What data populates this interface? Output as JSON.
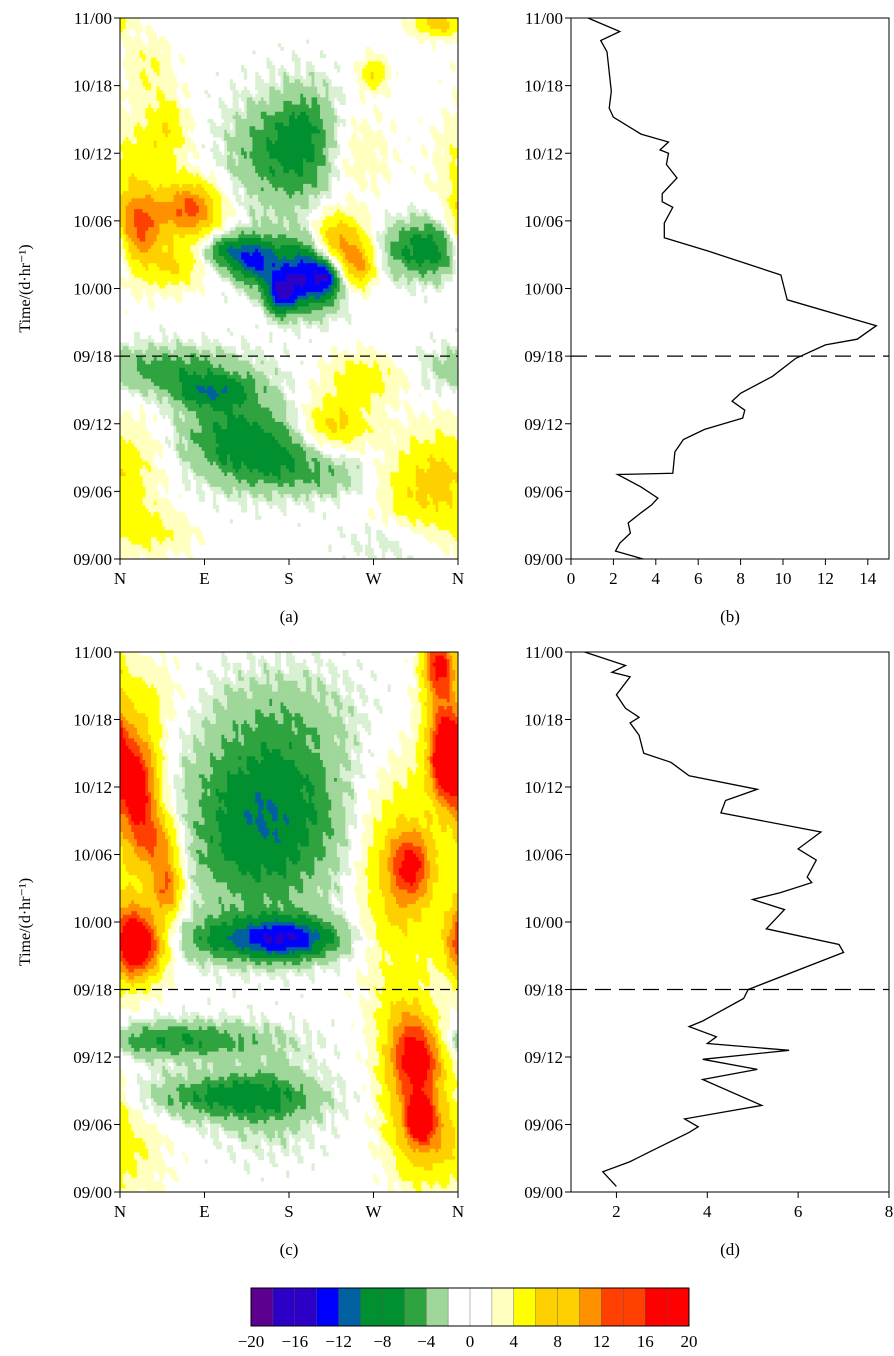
{
  "chart_data": [
    {
      "id": "a",
      "panel_label": "(a)",
      "type": "heatmap",
      "title": "",
      "xlabel": "",
      "ylabel": "Time/(d·hr⁻¹)",
      "x_ticks": [
        "N",
        "E",
        "S",
        "W",
        "N"
      ],
      "y_ticks": [
        "09/00",
        "09/06",
        "09/12",
        "09/18",
        "10/00",
        "10/06",
        "10/12",
        "10/18",
        "11/00"
      ],
      "ylim_hours": [
        0,
        48
      ],
      "reference_line": "09/18",
      "grid": false,
      "blobs": [
        {
          "az": 20,
          "t": 29,
          "sa": 18,
          "st": 2.5,
          "v": 14
        },
        {
          "az": 75,
          "t": 31,
          "sa": 22,
          "st": 1.8,
          "v": 13
        },
        {
          "az": 60,
          "t": 26,
          "sa": 18,
          "st": 1.4,
          "v": 6
        },
        {
          "az": 230,
          "t": 28,
          "sa": 20,
          "st": 1.8,
          "v": 12
        },
        {
          "az": 255,
          "t": 26,
          "sa": 12,
          "st": 1.4,
          "v": 9
        },
        {
          "az": 170,
          "t": 23,
          "sa": 10,
          "st": 1.2,
          "v": -6
        },
        {
          "az": 175,
          "t": 24,
          "sa": 15,
          "st": 1.2,
          "v": -7
        },
        {
          "az": 145,
          "t": 26.5,
          "sa": 20,
          "st": 1.5,
          "v": -11
        },
        {
          "az": 205,
          "t": 25.5,
          "sa": 22,
          "st": 2.2,
          "v": -14
        },
        {
          "az": 220,
          "t": 25,
          "sa": 8,
          "st": 1.0,
          "v": -6
        },
        {
          "az": 110,
          "t": 27.5,
          "sa": 18,
          "st": 1.0,
          "v": -6
        },
        {
          "az": 330,
          "t": 27.5,
          "sa": 35,
          "st": 1.8,
          "v": -8
        },
        {
          "az": 175,
          "t": 36,
          "sa": 40,
          "st": 3.5,
          "v": -6
        },
        {
          "az": 200,
          "t": 38,
          "sa": 22,
          "st": 3.0,
          "v": -3
        },
        {
          "az": 15,
          "t": 35,
          "sa": 25,
          "st": 3.0,
          "v": 4
        },
        {
          "az": 50,
          "t": 38,
          "sa": 15,
          "st": 2.0,
          "v": 5
        },
        {
          "az": 250,
          "t": 36,
          "sa": 25,
          "st": 2.5,
          "v": 3
        },
        {
          "az": 270,
          "t": 43,
          "sa": 10,
          "st": 1.0,
          "v": 6
        },
        {
          "az": 340,
          "t": 47.5,
          "sa": 18,
          "st": 0.8,
          "v": 8
        },
        {
          "az": 30,
          "t": 43.5,
          "sa": 18,
          "st": 2.0,
          "v": 3
        },
        {
          "az": 50,
          "t": 16.8,
          "sa": 60,
          "st": 1.5,
          "v": -5
        },
        {
          "az": 100,
          "t": 14.8,
          "sa": 30,
          "st": 1.0,
          "v": -6
        },
        {
          "az": 120,
          "t": 11,
          "sa": 45,
          "st": 2.8,
          "v": -6
        },
        {
          "az": 160,
          "t": 9,
          "sa": 35,
          "st": 2.0,
          "v": -4
        },
        {
          "az": 220,
          "t": 7.5,
          "sa": 40,
          "st": 1.5,
          "v": -3
        },
        {
          "az": 230,
          "t": 12,
          "sa": 25,
          "st": 1.5,
          "v": 7
        },
        {
          "az": 260,
          "t": 16,
          "sa": 30,
          "st": 1.5,
          "v": 5
        },
        {
          "az": 330,
          "t": 6.5,
          "sa": 35,
          "st": 3.0,
          "v": 7
        },
        {
          "az": 30,
          "t": 2.5,
          "sa": 30,
          "st": 1.5,
          "v": 4
        },
        {
          "az": 300,
          "t": 1.5,
          "sa": 40,
          "st": 1.5,
          "v": -2
        },
        {
          "az": 20,
          "t": 10,
          "sa": 30,
          "st": 3.0,
          "v": 2
        }
      ]
    },
    {
      "id": "b",
      "panel_label": "(b)",
      "type": "line",
      "title": "",
      "xlabel": "",
      "ylabel": "",
      "x_ticks": [
        0,
        2,
        4,
        6,
        8,
        10,
        12,
        14
      ],
      "xlim": [
        0,
        15
      ],
      "y_ticks": [
        "09/00",
        "09/06",
        "09/12",
        "09/18",
        "10/00",
        "10/06",
        "10/12",
        "10/18",
        "11/00"
      ],
      "ylim_hours": [
        0,
        48
      ],
      "reference_line": "09/18",
      "grid": false,
      "series": [
        {
          "x": [
            3.4,
            2.1,
            2.3,
            2.8,
            2.7,
            3.3,
            3.8,
            4.1,
            3.3,
            2.2,
            4.8,
            4.9,
            5.3,
            6.3,
            8.1,
            8.2,
            7.6,
            8.0,
            9.5,
            10.6,
            12.0,
            13.5,
            14.4,
            10.2,
            9.9,
            6.5,
            4.4,
            4.4,
            4.8,
            4.3,
            4.3,
            5.0,
            4.5,
            4.6,
            4.2,
            4.6,
            3.3,
            2.0,
            1.8,
            1.9,
            1.7,
            1.4,
            2.3,
            0.8
          ],
          "y": [
            0,
            0.7,
            1.4,
            2.3,
            3.2,
            4.1,
            4.8,
            5.4,
            6.4,
            7.5,
            7.6,
            9.5,
            10.6,
            11.5,
            12.5,
            13.2,
            14.0,
            14.7,
            16.2,
            17.8,
            19.0,
            19.5,
            20.7,
            23.0,
            25.2,
            27.3,
            28.5,
            29.8,
            31.2,
            31.7,
            32.4,
            33.8,
            35.0,
            36.0,
            36.3,
            37.0,
            37.7,
            39.2,
            40.0,
            41.5,
            45.0,
            46.0,
            46.8,
            48.0
          ]
        }
      ]
    },
    {
      "id": "c",
      "panel_label": "(c)",
      "type": "heatmap",
      "title": "",
      "xlabel": "",
      "ylabel": "Time/(d·hr⁻¹)",
      "x_ticks": [
        "N",
        "E",
        "S",
        "W",
        "N"
      ],
      "y_ticks": [
        "09/00",
        "09/06",
        "09/12",
        "09/18",
        "10/00",
        "10/06",
        "10/12",
        "10/18",
        "11/00"
      ],
      "ylim_hours": [
        0,
        48
      ],
      "reference_line": "09/18",
      "grid": false,
      "blobs": [
        {
          "az": 18,
          "t": 36,
          "sa": 16,
          "st": 3.5,
          "v": 18
        },
        {
          "az": 40,
          "t": 31,
          "sa": 16,
          "st": 2.0,
          "v": 10
        },
        {
          "az": 20,
          "t": 22,
          "sa": 20,
          "st": 2.0,
          "v": 18
        },
        {
          "az": 50,
          "t": 27,
          "sa": 12,
          "st": 1.8,
          "v": 12
        },
        {
          "az": 10,
          "t": 24,
          "sa": 15,
          "st": 4.0,
          "v": 6
        },
        {
          "az": 150,
          "t": 22.5,
          "sa": 60,
          "st": 1.4,
          "v": -8
        },
        {
          "az": 180,
          "t": 22.5,
          "sa": 30,
          "st": 1.2,
          "v": -6
        },
        {
          "az": 150,
          "t": 31,
          "sa": 60,
          "st": 5.0,
          "v": -6
        },
        {
          "az": 160,
          "t": 35,
          "sa": 50,
          "st": 4.0,
          "v": -4
        },
        {
          "az": 170,
          "t": 42,
          "sa": 60,
          "st": 3.5,
          "v": -3
        },
        {
          "az": 300,
          "t": 28,
          "sa": 30,
          "st": 6.0,
          "v": 8
        },
        {
          "az": 310,
          "t": 29,
          "sa": 15,
          "st": 2.0,
          "v": 10
        },
        {
          "az": 345,
          "t": 40,
          "sa": 15,
          "st": 4.0,
          "v": 12
        },
        {
          "az": 350,
          "t": 38.5,
          "sa": 10,
          "st": 2.0,
          "v": 17
        },
        {
          "az": 340,
          "t": 47,
          "sa": 12,
          "st": 2.0,
          "v": 14
        },
        {
          "az": 30,
          "t": 44,
          "sa": 25,
          "st": 2.5,
          "v": 3
        },
        {
          "az": 60,
          "t": 13.5,
          "sa": 70,
          "st": 1.2,
          "v": -6
        },
        {
          "az": 110,
          "t": 8.5,
          "sa": 60,
          "st": 1.4,
          "v": -6
        },
        {
          "az": 160,
          "t": 8,
          "sa": 40,
          "st": 3.0,
          "v": -3
        },
        {
          "az": 315,
          "t": 8,
          "sa": 22,
          "st": 4.0,
          "v": 10
        },
        {
          "az": 320,
          "t": 6.5,
          "sa": 8,
          "st": 1.2,
          "v": 17
        },
        {
          "az": 320,
          "t": 12.5,
          "sa": 18,
          "st": 2.0,
          "v": 11
        },
        {
          "az": 300,
          "t": 14,
          "sa": 20,
          "st": 3.0,
          "v": 6
        },
        {
          "az": 340,
          "t": 5,
          "sa": 25,
          "st": 3.0,
          "v": 5
        },
        {
          "az": 20,
          "t": 3,
          "sa": 25,
          "st": 3.0,
          "v": 2
        }
      ]
    },
    {
      "id": "d",
      "panel_label": "(d)",
      "type": "line",
      "title": "",
      "xlabel": "",
      "ylabel": "",
      "x_ticks": [
        2,
        4,
        6,
        8
      ],
      "xlim": [
        1,
        8
      ],
      "y_ticks": [
        "09/00",
        "09/06",
        "09/12",
        "09/18",
        "10/00",
        "10/06",
        "10/12",
        "10/18",
        "11/00"
      ],
      "ylim_hours": [
        0,
        48
      ],
      "reference_line": "09/18",
      "grid": false,
      "series": [
        {
          "x": [
            2.0,
            1.7,
            2.3,
            2.7,
            3.1,
            3.6,
            3.8,
            3.5,
            5.2,
            3.9,
            5.1,
            3.9,
            5.8,
            4.0,
            4.2,
            3.6,
            3.9,
            4.8,
            4.9,
            7.0,
            6.9,
            5.3,
            5.7,
            5.0,
            5.6,
            6.3,
            6.2,
            6.4,
            6.0,
            6.5,
            4.3,
            4.4,
            5.1,
            3.6,
            3.2,
            2.6,
            2.5,
            2.3,
            2.5,
            2.2,
            2.0,
            2.3,
            1.9,
            2.2,
            1.3
          ],
          "y": [
            0.5,
            1.8,
            2.7,
            3.5,
            4.3,
            5.3,
            5.8,
            6.5,
            7.7,
            10.0,
            10.9,
            11.8,
            12.6,
            13.2,
            13.8,
            14.7,
            15.2,
            17.2,
            18.0,
            21.3,
            22.0,
            23.4,
            25.1,
            26.0,
            26.6,
            27.5,
            28.0,
            29.5,
            30.5,
            32.0,
            33.7,
            34.8,
            35.8,
            37.0,
            38.2,
            39.0,
            40.6,
            41.7,
            42.2,
            43.0,
            44.2,
            45.8,
            46.2,
            46.8,
            48.0
          ]
        }
      ]
    },
    {
      "id": "colorbar",
      "type": "colorbar",
      "title": "",
      "tick_labels": [
        "−20",
        "−16",
        "−12",
        "−8",
        "−4",
        "0",
        "4",
        "8",
        "12",
        "16",
        "20"
      ],
      "tick_values": [
        -20,
        -16,
        -12,
        -8,
        -4,
        0,
        4,
        8,
        12,
        16,
        20
      ],
      "range": [
        -20,
        20
      ],
      "step": 2,
      "colors": {
        "min": "#5d0090",
        "purple": "#2d00c8",
        "blue": "#0000ff",
        "blue_green": "#0060a0",
        "dark_green": "#009030",
        "green": "#2fa33f",
        "light_green": "#9fd79a",
        "pale_green": "#d9f0d3",
        "white": "#ffffff",
        "pale_yellow": "#ffffc0",
        "yellow": "#ffff00",
        "gold": "#ffd000",
        "orange": "#ff9000",
        "red_orange": "#ff4000",
        "max": "#ff0000"
      }
    }
  ]
}
